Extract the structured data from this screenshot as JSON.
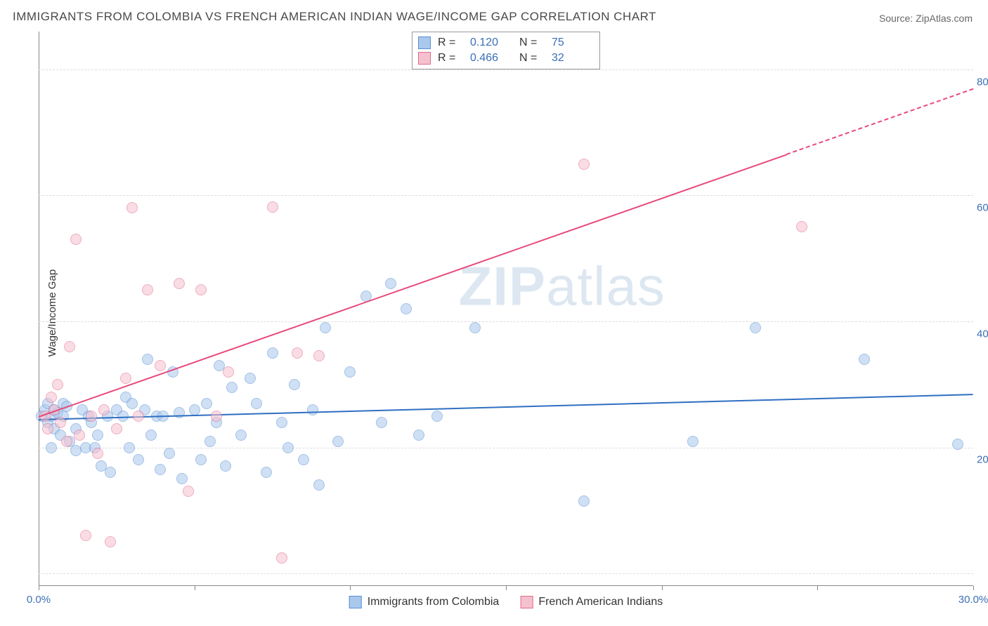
{
  "title": "IMMIGRANTS FROM COLOMBIA VS FRENCH AMERICAN INDIAN WAGE/INCOME GAP CORRELATION CHART",
  "source_label": "Source: ",
  "source_name": "ZipAtlas.com",
  "ylabel": "Wage/Income Gap",
  "watermark": {
    "bold": "ZIP",
    "light": "atlas"
  },
  "chart": {
    "type": "scatter",
    "background_color": "#ffffff",
    "grid_color": "#dddddd",
    "axis_color": "#888888",
    "xlim": [
      0,
      30
    ],
    "ylim": [
      0,
      88
    ],
    "yticks": [
      {
        "v": 20,
        "label": "20.0%"
      },
      {
        "v": 40,
        "label": "40.0%"
      },
      {
        "v": 60,
        "label": "60.0%"
      },
      {
        "v": 80,
        "label": "80.0%"
      }
    ],
    "xticks": [
      {
        "v": 0,
        "label": "0.0%"
      },
      {
        "v": 5,
        "label": ""
      },
      {
        "v": 10,
        "label": ""
      },
      {
        "v": 15,
        "label": ""
      },
      {
        "v": 20,
        "label": ""
      },
      {
        "v": 25,
        "label": ""
      },
      {
        "v": 30,
        "label": "30.0%"
      }
    ],
    "grid_y": [
      2,
      22,
      42,
      62,
      82
    ],
    "marker_radius": 8,
    "marker_stroke": 1.5,
    "marker_opacity": 0.55,
    "series": [
      {
        "name": "Immigrants from Colombia",
        "fill": "#a9c8ec",
        "stroke": "#5a8fd4",
        "r_label": "R =",
        "r_value": "0.120",
        "n_label": "N =",
        "n_value": "75",
        "trend": {
          "x1": 0,
          "y1": 26.5,
          "x2": 30,
          "y2": 30.5,
          "color": "#2f6fc2",
          "width": 2,
          "dash": false
        },
        "points": [
          [
            0.1,
            27
          ],
          [
            0.2,
            28
          ],
          [
            0.3,
            26
          ],
          [
            0.3,
            29
          ],
          [
            0.4,
            27
          ],
          [
            0.4,
            22
          ],
          [
            0.5,
            28
          ],
          [
            0.5,
            25
          ],
          [
            0.6,
            27.5
          ],
          [
            0.7,
            24
          ],
          [
            0.8,
            27
          ],
          [
            0.8,
            29
          ],
          [
            0.9,
            28.5
          ],
          [
            1.0,
            23
          ],
          [
            1.2,
            21.5
          ],
          [
            1.2,
            25
          ],
          [
            1.4,
            28
          ],
          [
            1.5,
            22
          ],
          [
            1.6,
            27
          ],
          [
            1.7,
            26
          ],
          [
            1.8,
            22
          ],
          [
            1.9,
            24
          ],
          [
            2.0,
            19
          ],
          [
            2.2,
            27
          ],
          [
            2.3,
            18
          ],
          [
            2.5,
            28
          ],
          [
            2.7,
            27
          ],
          [
            2.8,
            30
          ],
          [
            2.9,
            22
          ],
          [
            3.0,
            29
          ],
          [
            3.2,
            20
          ],
          [
            3.4,
            28
          ],
          [
            3.5,
            36
          ],
          [
            3.6,
            24
          ],
          [
            3.8,
            27
          ],
          [
            3.9,
            18.5
          ],
          [
            4.0,
            27
          ],
          [
            4.2,
            21
          ],
          [
            4.3,
            34
          ],
          [
            4.5,
            27.5
          ],
          [
            4.6,
            17
          ],
          [
            5.0,
            28
          ],
          [
            5.2,
            20
          ],
          [
            5.4,
            29
          ],
          [
            5.5,
            23
          ],
          [
            5.7,
            26
          ],
          [
            5.8,
            35
          ],
          [
            6.0,
            19
          ],
          [
            6.2,
            31.5
          ],
          [
            6.5,
            24
          ],
          [
            6.8,
            33
          ],
          [
            7.0,
            29
          ],
          [
            7.3,
            18
          ],
          [
            7.5,
            37
          ],
          [
            7.8,
            26
          ],
          [
            8.0,
            22
          ],
          [
            8.2,
            32
          ],
          [
            8.5,
            20
          ],
          [
            8.8,
            28
          ],
          [
            9.0,
            16
          ],
          [
            9.2,
            41
          ],
          [
            9.6,
            23
          ],
          [
            10.0,
            34
          ],
          [
            10.5,
            46
          ],
          [
            11.0,
            26
          ],
          [
            11.3,
            48
          ],
          [
            11.8,
            44
          ],
          [
            12.2,
            24
          ],
          [
            12.8,
            27
          ],
          [
            14.0,
            41
          ],
          [
            17.5,
            13.5
          ],
          [
            21.0,
            23
          ],
          [
            23.0,
            41
          ],
          [
            26.5,
            36
          ],
          [
            29.5,
            22.5
          ]
        ]
      },
      {
        "name": "French American Indians",
        "fill": "#f6c1cf",
        "stroke": "#e06c8c",
        "r_label": "R =",
        "r_value": "0.466",
        "n_label": "N =",
        "n_value": "32",
        "trend": {
          "x1": 0,
          "y1": 27,
          "x2": 30,
          "y2": 79,
          "color": "#e84a7a",
          "width": 2,
          "dash_after_x": 24
        },
        "points": [
          [
            0.2,
            27
          ],
          [
            0.3,
            25
          ],
          [
            0.4,
            30
          ],
          [
            0.5,
            28
          ],
          [
            0.6,
            32
          ],
          [
            0.7,
            26
          ],
          [
            0.9,
            23
          ],
          [
            1.0,
            38
          ],
          [
            1.2,
            55
          ],
          [
            1.3,
            24
          ],
          [
            1.5,
            8
          ],
          [
            1.7,
            27
          ],
          [
            1.9,
            21
          ],
          [
            2.1,
            28
          ],
          [
            2.3,
            7
          ],
          [
            2.5,
            25
          ],
          [
            2.8,
            33
          ],
          [
            3.0,
            60
          ],
          [
            3.2,
            27
          ],
          [
            3.5,
            47
          ],
          [
            3.9,
            35
          ],
          [
            4.5,
            48
          ],
          [
            4.8,
            15
          ],
          [
            5.2,
            47
          ],
          [
            5.7,
            27
          ],
          [
            6.1,
            34
          ],
          [
            7.5,
            60.2
          ],
          [
            7.8,
            4.5
          ],
          [
            8.3,
            37
          ],
          [
            9.0,
            36.5
          ],
          [
            17.5,
            67
          ],
          [
            24.5,
            57
          ]
        ]
      }
    ]
  },
  "legend_bottom": [
    {
      "label": "Immigrants from Colombia",
      "fill": "#a9c8ec",
      "stroke": "#5a8fd4"
    },
    {
      "label": "French American Indians",
      "fill": "#f6c1cf",
      "stroke": "#e06c8c"
    }
  ]
}
